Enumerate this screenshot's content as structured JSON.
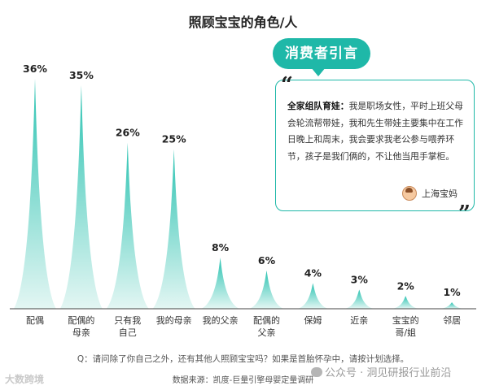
{
  "title": "照顾宝宝的角色/人",
  "quote": {
    "tag": "消费者引言",
    "open_mark": "“",
    "close_mark": "”",
    "speaker": "全家组队育娃：",
    "text": "我是职场女性，平时上班父母会轮流帮带娃，我和先生带娃主要集中在工作日晚上和周末，我会要求我老公参与喂养环节，孩子是我们俩的，不让他当甩手掌柜。",
    "attribution": "上海宝妈",
    "avatar_icon": "mom-avatar-icon"
  },
  "question": "Q：请问除了你自己之外，还有其他人照顾宝宝吗？如果是首胎怀孕中，请按计划选择。",
  "source": "数据来源：凯度-巨量引擎母婴定量调研",
  "watermarks": {
    "left": "大数跨境",
    "right": "公众号 · 洞见研报行业前沿",
    "right_icon": "wechat-icon"
  },
  "colors": {
    "accent": "#1fb8a8",
    "peak_top": "#2cc3b2",
    "peak_bottom": "#e3f6f3"
  },
  "chart_data": {
    "type": "area",
    "unit": "%",
    "categories": [
      "配偶",
      "配偶的母亲",
      "只有我自己",
      "我的母亲",
      "我的父亲",
      "配偶的父亲",
      "保姆",
      "近亲",
      "宝宝的哥/姐",
      "邻居"
    ],
    "category_lines": [
      [
        "配偶"
      ],
      [
        "配偶的",
        "母亲"
      ],
      [
        "只有我",
        "自己"
      ],
      [
        "我的母亲"
      ],
      [
        "我的父亲"
      ],
      [
        "配偶的",
        "父亲"
      ],
      [
        "保姆"
      ],
      [
        "近亲"
      ],
      [
        "宝宝的",
        "哥/姐"
      ],
      [
        "邻居"
      ]
    ],
    "values": [
      36,
      35,
      26,
      25,
      8,
      6,
      4,
      3,
      2,
      1
    ],
    "value_labels": [
      "36%",
      "35%",
      "26%",
      "25%",
      "8%",
      "6%",
      "4%",
      "3%",
      "2%",
      "1%"
    ],
    "ylim": [
      0,
      36
    ],
    "grid": false,
    "legend": "none"
  }
}
